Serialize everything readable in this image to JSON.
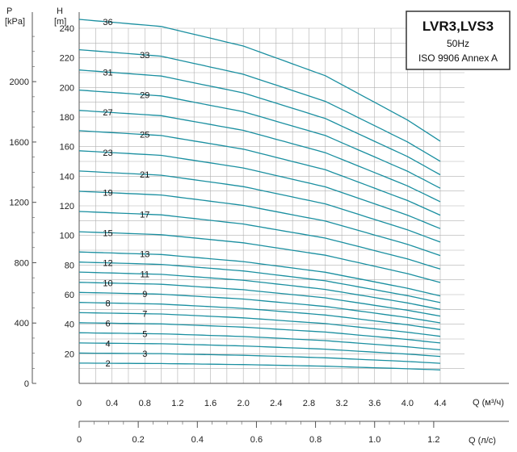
{
  "chart_data": {
    "type": "line",
    "title": "LVR3,LVS3",
    "subtitle_lines": [
      "50Hz",
      "ISO 9906 Annex A"
    ],
    "xlabel": "Q (м³/ч)",
    "x2label": "Q (л/с)",
    "ylabel": "H [m]",
    "y2label": "P [kPa]",
    "xlim": [
      0,
      4.4
    ],
    "ylim": [
      0,
      240
    ],
    "x2lim_l_per_s": [
      0,
      1.2222
    ],
    "y2lim_kpa": [
      0,
      2354
    ],
    "x_ticks": [
      "0",
      "0.4",
      "0.8",
      "1.2",
      "1.6",
      "2.0",
      "2.4",
      "2.8",
      "3.2",
      "3.6",
      "4.0",
      "4.4"
    ],
    "y_ticks": [
      "20",
      "40",
      "60",
      "80",
      "100",
      "120",
      "140",
      "160",
      "180",
      "200",
      "220",
      "240"
    ],
    "x2_ticks": [
      "0",
      "0.2",
      "0.4",
      "0.6",
      "0.8",
      "1.0",
      "1.2"
    ],
    "y2_ticks": [
      "0",
      "400",
      "800",
      "1200",
      "1600",
      "2000"
    ],
    "grid": true,
    "series": [
      {
        "name": "2",
        "x": [
          0,
          1.0,
          2.0,
          3.0,
          4.0,
          4.4
        ],
        "y": [
          13.7,
          13.4,
          12.7,
          11.6,
          9.9,
          9.1
        ]
      },
      {
        "name": "3",
        "x": [
          0,
          1.0,
          2.0,
          3.0,
          4.0,
          4.4
        ],
        "y": [
          20.5,
          20.1,
          19.0,
          17.3,
          14.8,
          13.6
        ]
      },
      {
        "name": "4",
        "x": [
          0,
          1.0,
          2.0,
          3.0,
          4.0,
          4.4
        ],
        "y": [
          27.3,
          26.8,
          25.3,
          23.1,
          19.8,
          18.2
        ]
      },
      {
        "name": "5",
        "x": [
          0,
          1.0,
          2.0,
          3.0,
          4.0,
          4.4
        ],
        "y": [
          34.2,
          33.5,
          31.7,
          28.9,
          24.7,
          22.7
        ]
      },
      {
        "name": "6",
        "x": [
          0,
          1.0,
          2.0,
          3.0,
          4.0,
          4.4
        ],
        "y": [
          41.0,
          40.2,
          38.0,
          34.7,
          29.7,
          27.3
        ]
      },
      {
        "name": "7",
        "x": [
          0,
          1.0,
          2.0,
          3.0,
          4.0,
          4.4
        ],
        "y": [
          47.8,
          46.9,
          44.3,
          40.4,
          34.6,
          31.8
        ]
      },
      {
        "name": "8",
        "x": [
          0,
          1.0,
          2.0,
          3.0,
          4.0,
          4.4
        ],
        "y": [
          54.7,
          53.6,
          50.7,
          46.2,
          39.6,
          36.4
        ]
      },
      {
        "name": "9",
        "x": [
          0,
          1.0,
          2.0,
          3.0,
          4.0,
          4.4
        ],
        "y": [
          61.5,
          60.3,
          57.0,
          52.0,
          44.5,
          40.9
        ]
      },
      {
        "name": "10",
        "x": [
          0,
          1.0,
          2.0,
          3.0,
          4.0,
          4.4
        ],
        "y": [
          68.3,
          67.0,
          63.3,
          57.8,
          49.4,
          45.5
        ]
      },
      {
        "name": "11",
        "x": [
          0,
          1.0,
          2.0,
          3.0,
          4.0,
          4.4
        ],
        "y": [
          75.2,
          73.7,
          69.7,
          63.5,
          54.4,
          50.0
        ]
      },
      {
        "name": "12",
        "x": [
          0,
          1.0,
          2.0,
          3.0,
          4.0,
          4.4
        ],
        "y": [
          82.0,
          80.4,
          76.0,
          69.3,
          59.3,
          54.6
        ]
      },
      {
        "name": "13",
        "x": [
          0,
          1.0,
          2.0,
          3.0,
          4.0,
          4.4
        ],
        "y": [
          88.8,
          87.1,
          82.3,
          75.1,
          64.3,
          59.1
        ]
      },
      {
        "name": "15",
        "x": [
          0,
          1.0,
          2.0,
          3.0,
          4.0,
          4.4
        ],
        "y": [
          102.5,
          100.5,
          95.0,
          86.6,
          74.2,
          68.2
        ]
      },
      {
        "name": "17",
        "x": [
          0,
          1.0,
          2.0,
          3.0,
          4.0,
          4.4
        ],
        "y": [
          116.2,
          113.9,
          107.7,
          98.2,
          84.1,
          77.3
        ]
      },
      {
        "name": "19",
        "x": [
          0,
          1.0,
          2.0,
          3.0,
          4.0,
          4.4
        ],
        "y": [
          129.8,
          127.3,
          120.3,
          109.7,
          94.0,
          86.4
        ]
      },
      {
        "name": "21",
        "x": [
          0,
          1.0,
          2.0,
          3.0,
          4.0,
          4.4
        ],
        "y": [
          143.5,
          140.7,
          133.0,
          121.3,
          103.8,
          95.5
        ]
      },
      {
        "name": "23",
        "x": [
          0,
          1.0,
          2.0,
          3.0,
          4.0,
          4.4
        ],
        "y": [
          157.2,
          154.1,
          145.6,
          132.8,
          113.7,
          104.6
        ]
      },
      {
        "name": "25",
        "x": [
          0,
          1.0,
          2.0,
          3.0,
          4.0,
          4.4
        ],
        "y": [
          170.8,
          167.5,
          158.3,
          144.4,
          123.6,
          113.7
        ]
      },
      {
        "name": "27",
        "x": [
          0,
          1.0,
          2.0,
          3.0,
          4.0,
          4.4
        ],
        "y": [
          184.5,
          180.9,
          171.0,
          155.9,
          133.5,
          122.8
        ]
      },
      {
        "name": "29",
        "x": [
          0,
          1.0,
          2.0,
          3.0,
          4.0,
          4.4
        ],
        "y": [
          198.2,
          194.3,
          183.6,
          167.5,
          143.4,
          131.9
        ]
      },
      {
        "name": "31",
        "x": [
          0,
          1.0,
          2.0,
          3.0,
          4.0,
          4.4
        ],
        "y": [
          211.8,
          207.7,
          196.3,
          179.0,
          153.3,
          141.0
        ]
      },
      {
        "name": "33",
        "x": [
          0,
          1.0,
          2.0,
          3.0,
          4.0,
          4.4
        ],
        "y": [
          225.5,
          221.1,
          208.9,
          190.6,
          163.2,
          150.1
        ]
      },
      {
        "name": "36",
        "x": [
          0,
          1.0,
          2.0,
          3.0,
          4.0,
          4.4
        ],
        "y": [
          246.0,
          241.2,
          228.0,
          207.9,
          178.0,
          163.7
        ]
      }
    ],
    "colors": {
      "curve": "#1a8fa0",
      "grid": "#b0b0b0",
      "axis": "#555555"
    }
  }
}
